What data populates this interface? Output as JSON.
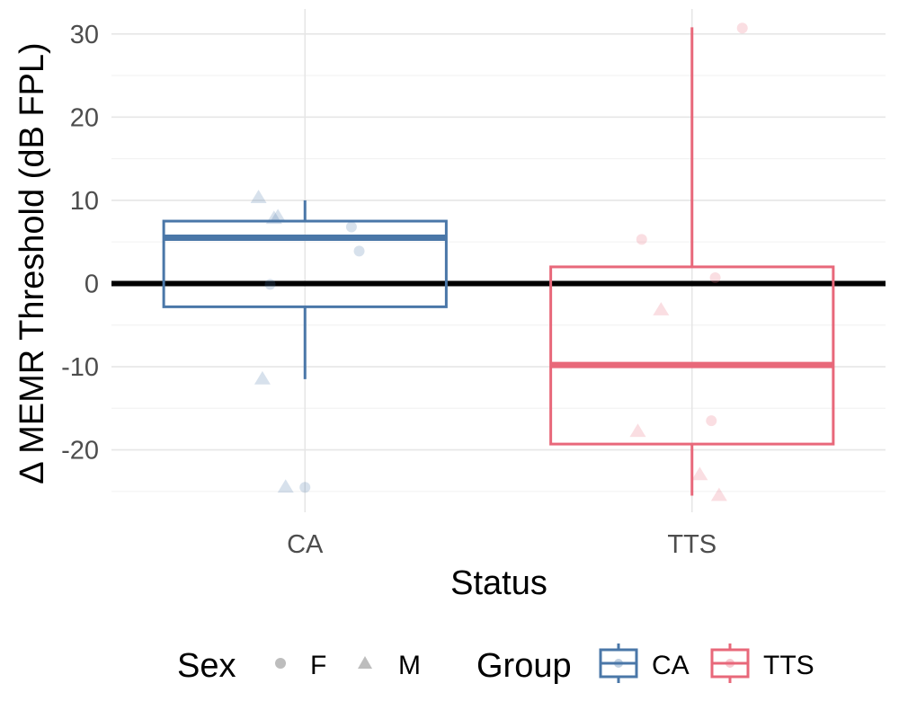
{
  "chart_data": {
    "type": "box",
    "xlabel": "Status",
    "ylabel": "Δ MEMR Threshold (dB FPL)",
    "categories": [
      "CA",
      "TTS"
    ],
    "ylim": [
      -27.5,
      33
    ],
    "yticks": [
      -20,
      -10,
      0,
      10,
      20,
      30
    ],
    "reference_line_y": 0,
    "grid": true,
    "boxes": [
      {
        "name": "CA",
        "color": "#4a77a8",
        "whisker_low": -11.5,
        "q1": -2.8,
        "median": 5.5,
        "q3": 7.5,
        "whisker_high": 10.0
      },
      {
        "name": "TTS",
        "color": "#e8687a",
        "whisker_low": -25.5,
        "q1": -19.3,
        "median": -9.8,
        "q3": 2.0,
        "whisker_high": 30.8
      }
    ],
    "points": [
      {
        "group": "CA",
        "sex": "M",
        "x": -0.12,
        "y": 10.3
      },
      {
        "group": "CA",
        "sex": "M",
        "x": -0.08,
        "y": 7.8
      },
      {
        "group": "CA",
        "sex": "M",
        "x": -0.07,
        "y": 8.0
      },
      {
        "group": "CA",
        "sex": "F",
        "x": 0.12,
        "y": 6.8
      },
      {
        "group": "CA",
        "sex": "F",
        "x": 0.14,
        "y": 3.9
      },
      {
        "group": "CA",
        "sex": "F",
        "x": -0.09,
        "y": -0.1
      },
      {
        "group": "CA",
        "sex": "M",
        "x": -0.11,
        "y": -11.5
      },
      {
        "group": "CA",
        "sex": "M",
        "x": -0.05,
        "y": -24.5
      },
      {
        "group": "CA",
        "sex": "F",
        "x": 0.0,
        "y": -24.5
      },
      {
        "group": "TTS",
        "sex": "F",
        "x": 0.13,
        "y": 30.7
      },
      {
        "group": "TTS",
        "sex": "F",
        "x": -0.13,
        "y": 5.3
      },
      {
        "group": "TTS",
        "sex": "F",
        "x": 0.06,
        "y": 0.7
      },
      {
        "group": "TTS",
        "sex": "M",
        "x": -0.08,
        "y": -3.2
      },
      {
        "group": "TTS",
        "sex": "F",
        "x": 0.05,
        "y": -16.5
      },
      {
        "group": "TTS",
        "sex": "M",
        "x": -0.14,
        "y": -17.8
      },
      {
        "group": "TTS",
        "sex": "M",
        "x": 0.02,
        "y": -23.0
      },
      {
        "group": "TTS",
        "sex": "M",
        "x": 0.07,
        "y": -25.5
      }
    ],
    "legend": {
      "position": "bottom",
      "sex_title": "Sex",
      "sex_items": [
        {
          "label": "F",
          "shape": "circle"
        },
        {
          "label": "M",
          "shape": "triangle"
        }
      ],
      "group_title": "Group",
      "group_items": [
        {
          "label": "CA",
          "color": "#4a77a8"
        },
        {
          "label": "TTS",
          "color": "#e8687a"
        }
      ]
    }
  }
}
